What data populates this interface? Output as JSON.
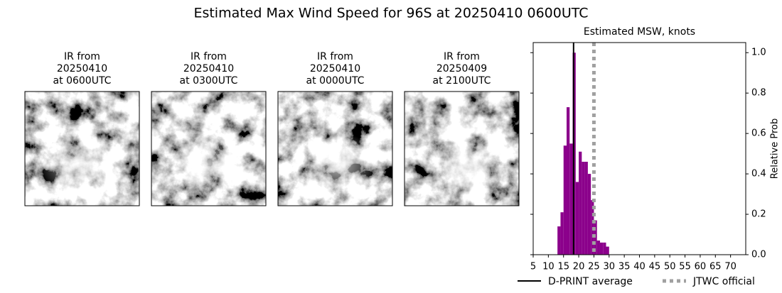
{
  "title": "Estimated Max Wind Speed for 96S at 20250410 0600UTC",
  "panels": [
    {
      "title": [
        "IR from",
        "20250410",
        "at 0600UTC"
      ]
    },
    {
      "title": [
        "IR from",
        "20250410",
        "at 0300UTC"
      ]
    },
    {
      "title": [
        "IR from",
        "20250410",
        "at 0000UTC"
      ]
    },
    {
      "title": [
        "IR from",
        "20250409",
        "at 2100UTC"
      ]
    }
  ],
  "chart_data": {
    "type": "histogram",
    "title": "Estimated MSW, knots",
    "ylabel": "Relative Prob",
    "bins": [
      13,
      14,
      15,
      16,
      17,
      18,
      19,
      20,
      21,
      22,
      23,
      24,
      25,
      26,
      27,
      28,
      29,
      30
    ],
    "values": [
      0.14,
      0.21,
      0.54,
      0.73,
      0.55,
      1.0,
      0.36,
      0.51,
      0.46,
      0.46,
      0.4,
      0.27,
      0.17,
      0.07,
      0.06,
      0.06,
      0.04
    ],
    "color": "#8b008b",
    "xlim": [
      5,
      75
    ],
    "ylim": [
      0,
      1.05
    ],
    "xticks": [
      5,
      10,
      15,
      20,
      25,
      30,
      35,
      40,
      45,
      50,
      55,
      60,
      65,
      70
    ],
    "yticks": [
      {
        "value": 0,
        "label": "0.0"
      },
      0.2,
      0.4,
      0.6,
      0.8,
      {
        "value": 1,
        "label": "1.0"
      }
    ],
    "lines": [
      {
        "name": "D-PRINT average",
        "value": 18.3,
        "color": "#000000",
        "style": "solid"
      },
      {
        "name": "JTWC official",
        "value": 25,
        "color": "#a0a0a0",
        "style": "dotted"
      }
    ]
  }
}
